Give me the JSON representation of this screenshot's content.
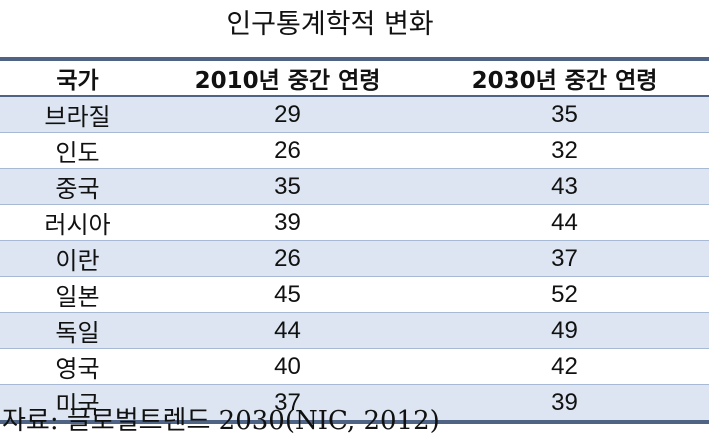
{
  "header": {
    "title": "인구통계학적 변화"
  },
  "table": {
    "columns": [
      "국가",
      "2010년 중간 연령",
      "2030년 중간 연령"
    ],
    "rows": [
      [
        "브라질",
        29,
        35
      ],
      [
        "인도",
        26,
        32
      ],
      [
        "중국",
        35,
        43
      ],
      [
        "러시아",
        39,
        44
      ],
      [
        "이란",
        26,
        37
      ],
      [
        "일본",
        45,
        52
      ],
      [
        "독일",
        44,
        49
      ],
      [
        "영국",
        40,
        42
      ],
      [
        "미국",
        37,
        39
      ]
    ]
  },
  "footer": {
    "source": "자료: 글로벌트렌드 2030(NIC, 2012)"
  }
}
